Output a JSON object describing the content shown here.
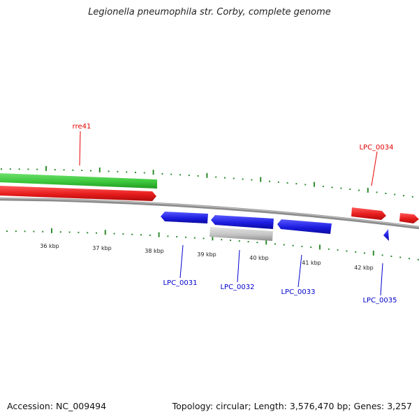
{
  "title": "Legionella pneumophila str. Corby, complete genome",
  "footer": {
    "accession": "Accession: NC_009494",
    "summary": "Topology: circular; Length: 3,576,470 bp; Genes: 3,257"
  },
  "colors": {
    "backbone": "#8c8c8c",
    "tick": "#2e8b2e",
    "rna_feature": "#3cc83c",
    "forward_gene": "#e61c1c",
    "reverse_gene": "#1c1ce0",
    "pseudo_gene": "#bdbdbd",
    "forward_label": "#e60000",
    "reverse_label": "#0000cc"
  },
  "scale_labels": [
    "36 kbp",
    "37 kbp",
    "38 kbp",
    "39 kbp",
    "40 kbp",
    "41 kbp",
    "42 kbp"
  ],
  "features": {
    "rre41": {
      "label": "rre41",
      "type": "rna",
      "strand": "+"
    },
    "LPC_0034": {
      "label": "LPC_0034",
      "type": "gene",
      "strand": "+"
    },
    "LPC_0031": {
      "label": "LPC_0031",
      "type": "gene",
      "strand": "-"
    },
    "LPC_0032": {
      "label": "LPC_0032",
      "type": "gene",
      "strand": "-"
    },
    "LPC_0033": {
      "label": "LPC_0033",
      "type": "gene",
      "strand": "-"
    },
    "LPC_0035": {
      "label": "LPC_0035",
      "type": "gene",
      "strand": "-"
    }
  }
}
